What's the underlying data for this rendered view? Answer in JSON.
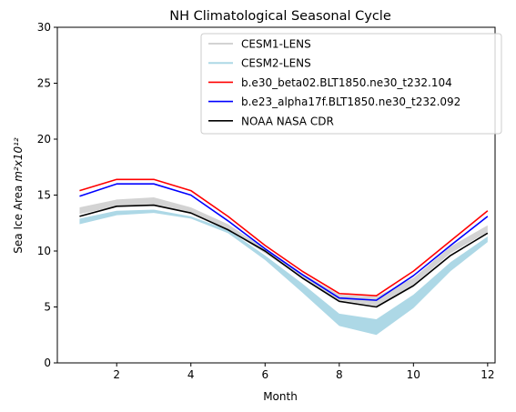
{
  "chart_data": {
    "type": "line",
    "title": "NH Climatological Seasonal Cycle",
    "xlabel": "Month",
    "ylabel_main": "Sea Ice Area ",
    "ylabel_unit": "m²x10¹²",
    "xlim": [
      0.4,
      12.2
    ],
    "ylim": [
      0,
      30
    ],
    "xticks": [
      2,
      4,
      6,
      8,
      10,
      12
    ],
    "yticks": [
      0,
      5,
      10,
      15,
      20,
      25,
      30
    ],
    "grid": false,
    "legend_position": "top-right",
    "x": [
      1,
      2,
      3,
      4,
      5,
      6,
      7,
      8,
      9,
      10,
      11,
      12
    ],
    "bands": [
      {
        "name": "CESM1-LENS",
        "color": "#d3d3d3",
        "lower": [
          13.3,
          14.0,
          14.1,
          13.4,
          11.9,
          9.8,
          7.6,
          5.6,
          5.1,
          7.0,
          9.8,
          11.7
        ],
        "upper": [
          13.9,
          14.6,
          14.8,
          13.9,
          12.4,
          10.2,
          8.0,
          6.1,
          5.9,
          7.6,
          10.4,
          12.3
        ]
      },
      {
        "name": "CESM2-LENS",
        "color": "#add8e6",
        "lower": [
          12.4,
          13.2,
          13.4,
          12.9,
          11.6,
          9.2,
          6.3,
          3.3,
          2.5,
          4.9,
          8.2,
          10.8
        ],
        "upper": [
          12.9,
          13.6,
          13.7,
          13.1,
          11.9,
          9.6,
          7.1,
          4.4,
          3.9,
          6.1,
          9.0,
          11.3
        ]
      }
    ],
    "series": [
      {
        "name": "b.e30_beta02.BLT1850.ne30_t232.104",
        "color": "#ff0000",
        "values": [
          15.4,
          16.4,
          16.4,
          15.4,
          13.1,
          10.5,
          8.2,
          6.2,
          6.0,
          8.2,
          10.9,
          13.6
        ]
      },
      {
        "name": "b.e23_alpha17f.BLT1850.ne30_t232.092",
        "color": "#0000ff",
        "values": [
          14.9,
          16.0,
          16.0,
          15.0,
          12.7,
          10.2,
          7.9,
          5.8,
          5.6,
          7.8,
          10.5,
          13.1
        ]
      },
      {
        "name": "NOAA NASA CDR",
        "color": "#000000",
        "values": [
          13.1,
          14.0,
          14.1,
          13.4,
          11.9,
          10.0,
          7.6,
          5.5,
          5.0,
          6.9,
          9.6,
          11.6
        ]
      }
    ]
  }
}
